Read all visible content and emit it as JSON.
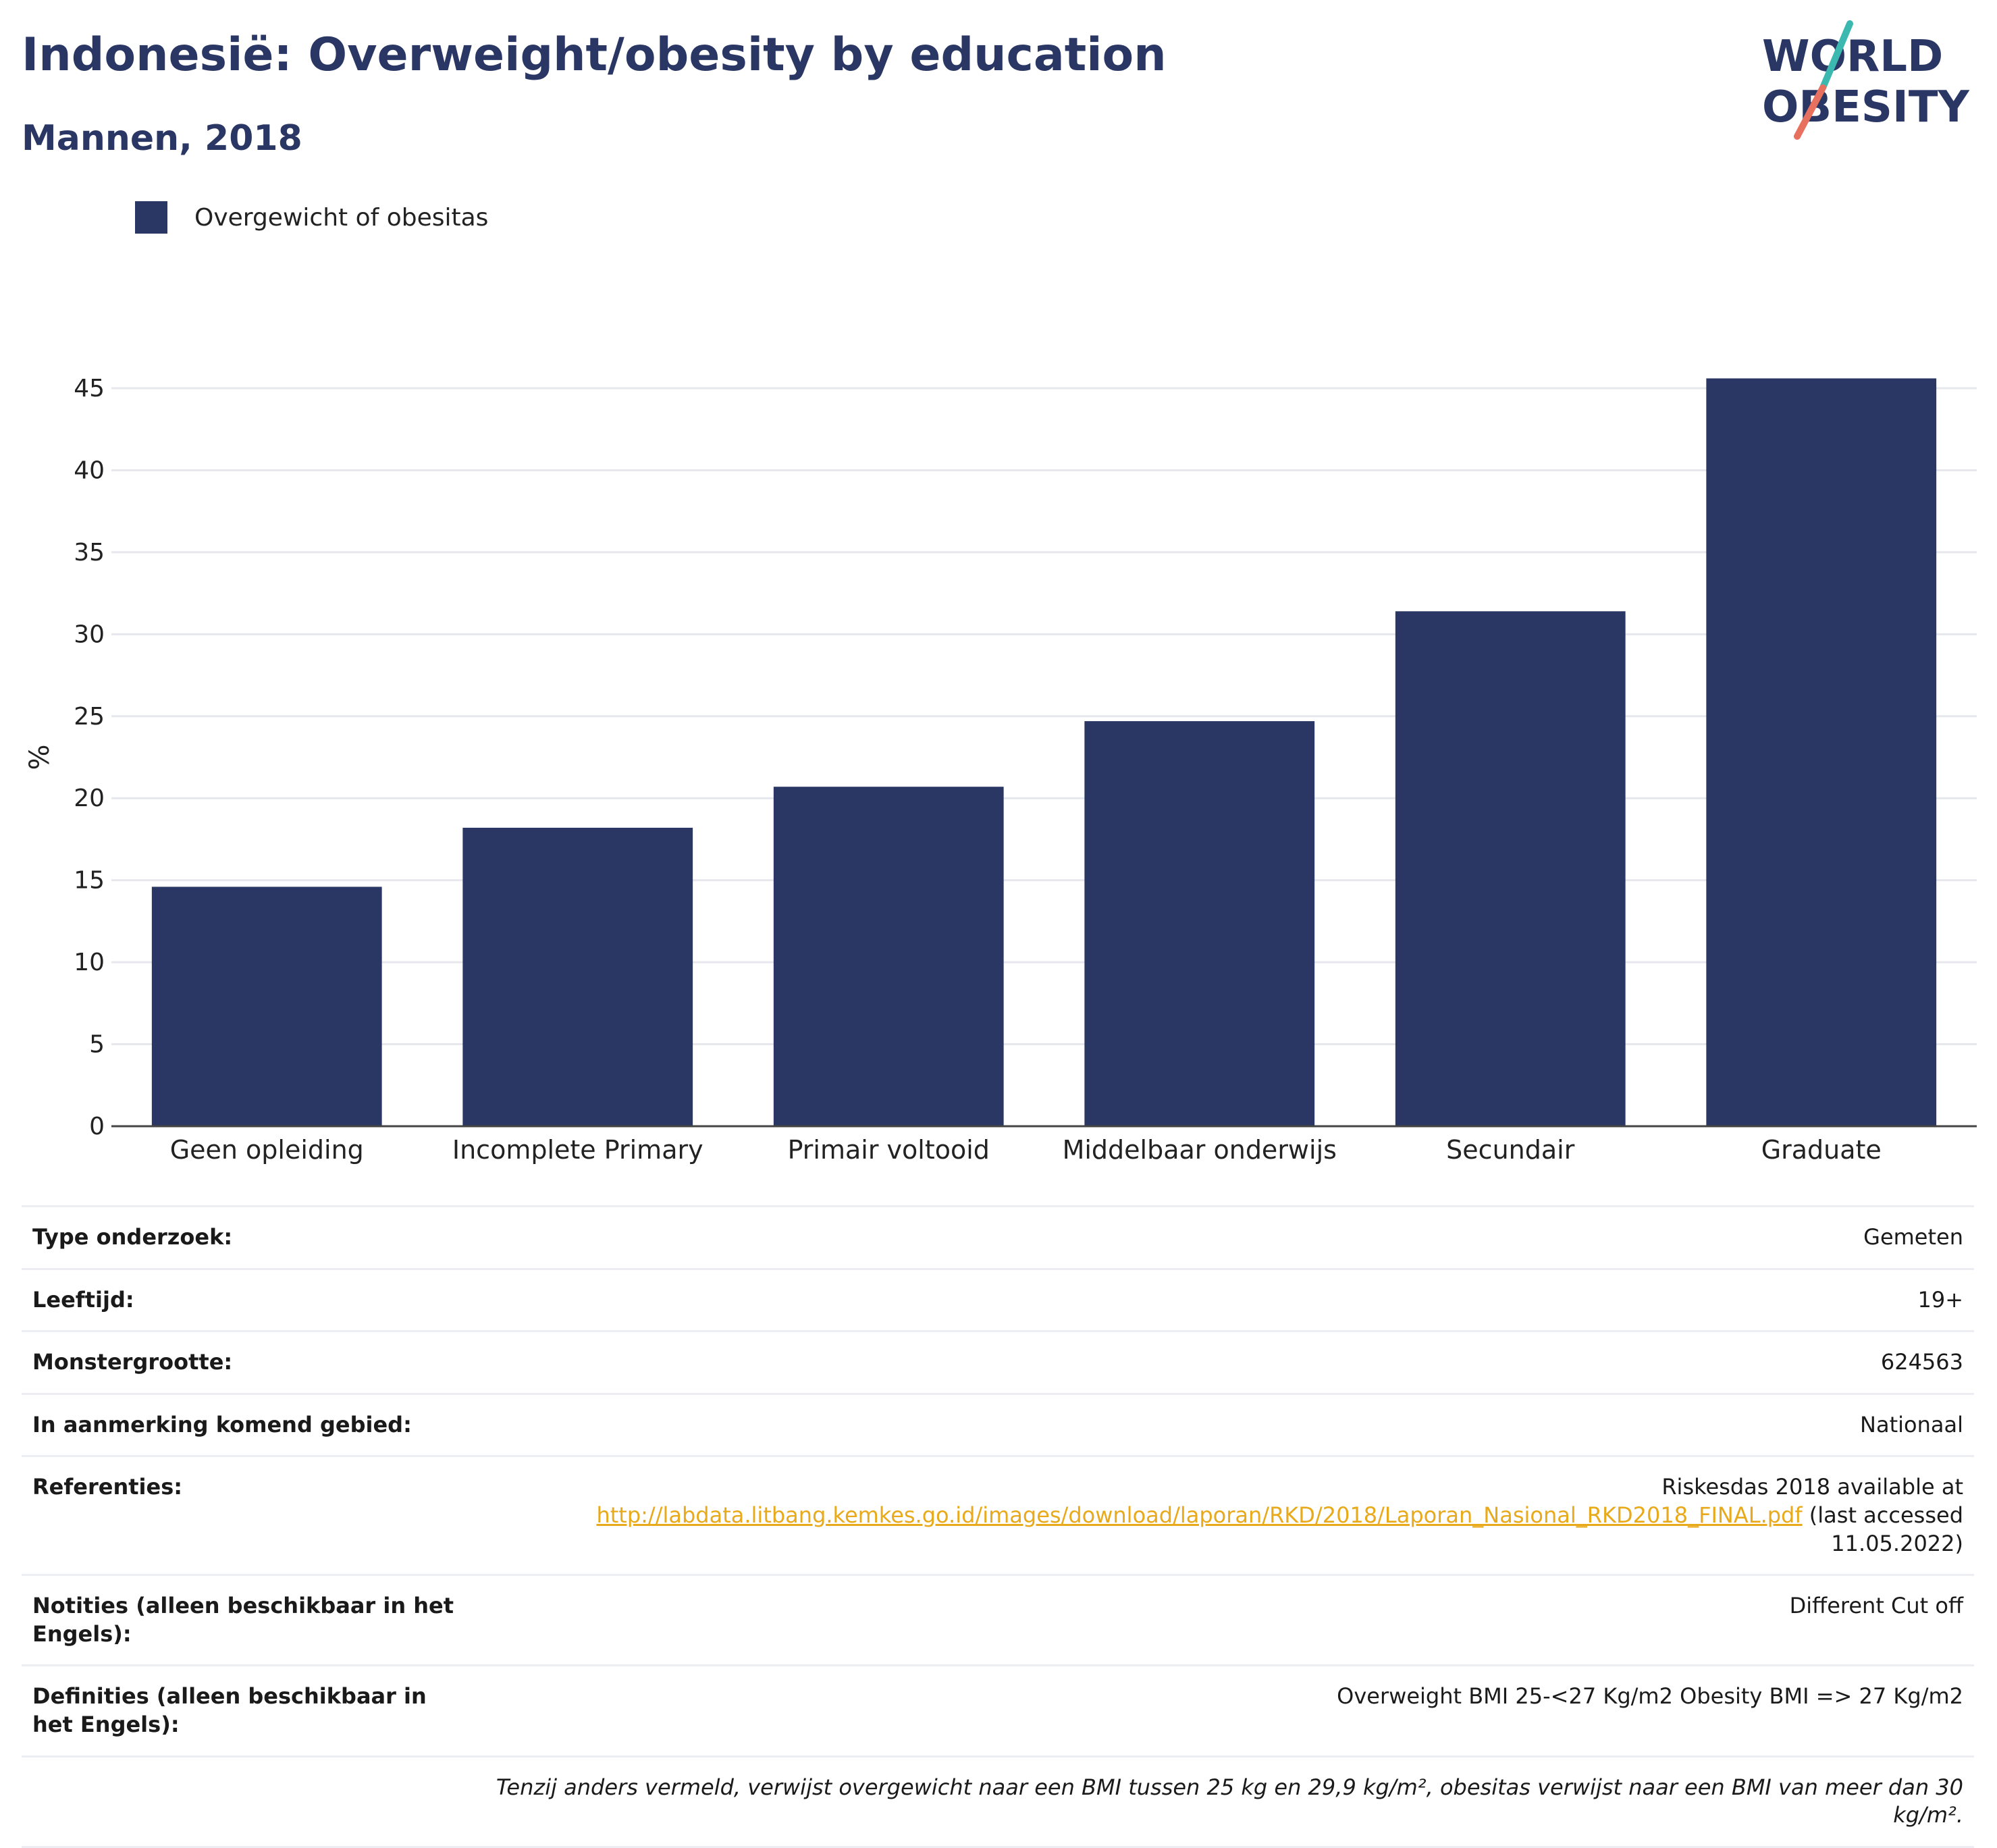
{
  "header": {
    "title": "Indonesië: Overweight/obesity by education",
    "subtitle": "Mannen, 2018"
  },
  "logo": {
    "line1": "WORLD",
    "line2": "OBESITY"
  },
  "legend": {
    "label": "Overgewicht of obesitas",
    "color": "#2a3764"
  },
  "chart_data": {
    "type": "bar",
    "title": "Indonesië: Overweight/obesity by education",
    "subtitle": "Mannen, 2018",
    "ylabel": "%",
    "xlabel": "",
    "ylim": [
      0,
      45
    ],
    "yticks": [
      0,
      5,
      10,
      15,
      20,
      25,
      30,
      35,
      40,
      45
    ],
    "grid": true,
    "legend_position": "top-left",
    "categories": [
      "Geen opleiding",
      "Incomplete Primary",
      "Primair voltooid",
      "Middelbaar onderwijs",
      "Secundair",
      "Graduate"
    ],
    "series": [
      {
        "name": "Overgewicht of obesitas",
        "color": "#2a3764",
        "values": [
          14.6,
          18.2,
          20.7,
          24.7,
          31.4,
          45.6
        ]
      }
    ]
  },
  "info": {
    "rows": [
      {
        "label": "Type onderzoek:",
        "value": "Gemeten"
      },
      {
        "label": "Leeftijd:",
        "value": "19+"
      },
      {
        "label": "Monstergrootte:",
        "value": "624563"
      },
      {
        "label": "In aanmerking komend gebied:",
        "value": "Nationaal"
      }
    ],
    "references": {
      "label": "Referenties:",
      "prefix": "Riskesdas 2018 available at",
      "link": "http://labdata.litbang.kemkes.go.id/images/download/laporan/RKD/2018/Laporan_Nasional_RKD2018_FINAL.pdf",
      "suffix": "(last accessed 11.05.2022)"
    },
    "notes": {
      "label": "Notities (alleen beschikbaar in het Engels):",
      "value": "Different Cut off"
    },
    "definitions": {
      "label": "Definities (alleen beschikbaar in het Engels):",
      "value": "Overweight BMI 25-<27 Kg/m2 Obesity BMI => 27 Kg/m2"
    },
    "footnote": "Tenzij anders vermeld, verwijst overgewicht naar een BMI tussen 25 kg en 29,9 kg/m², obesitas verwijst naar een BMI van meer dan 30 kg/m²."
  }
}
